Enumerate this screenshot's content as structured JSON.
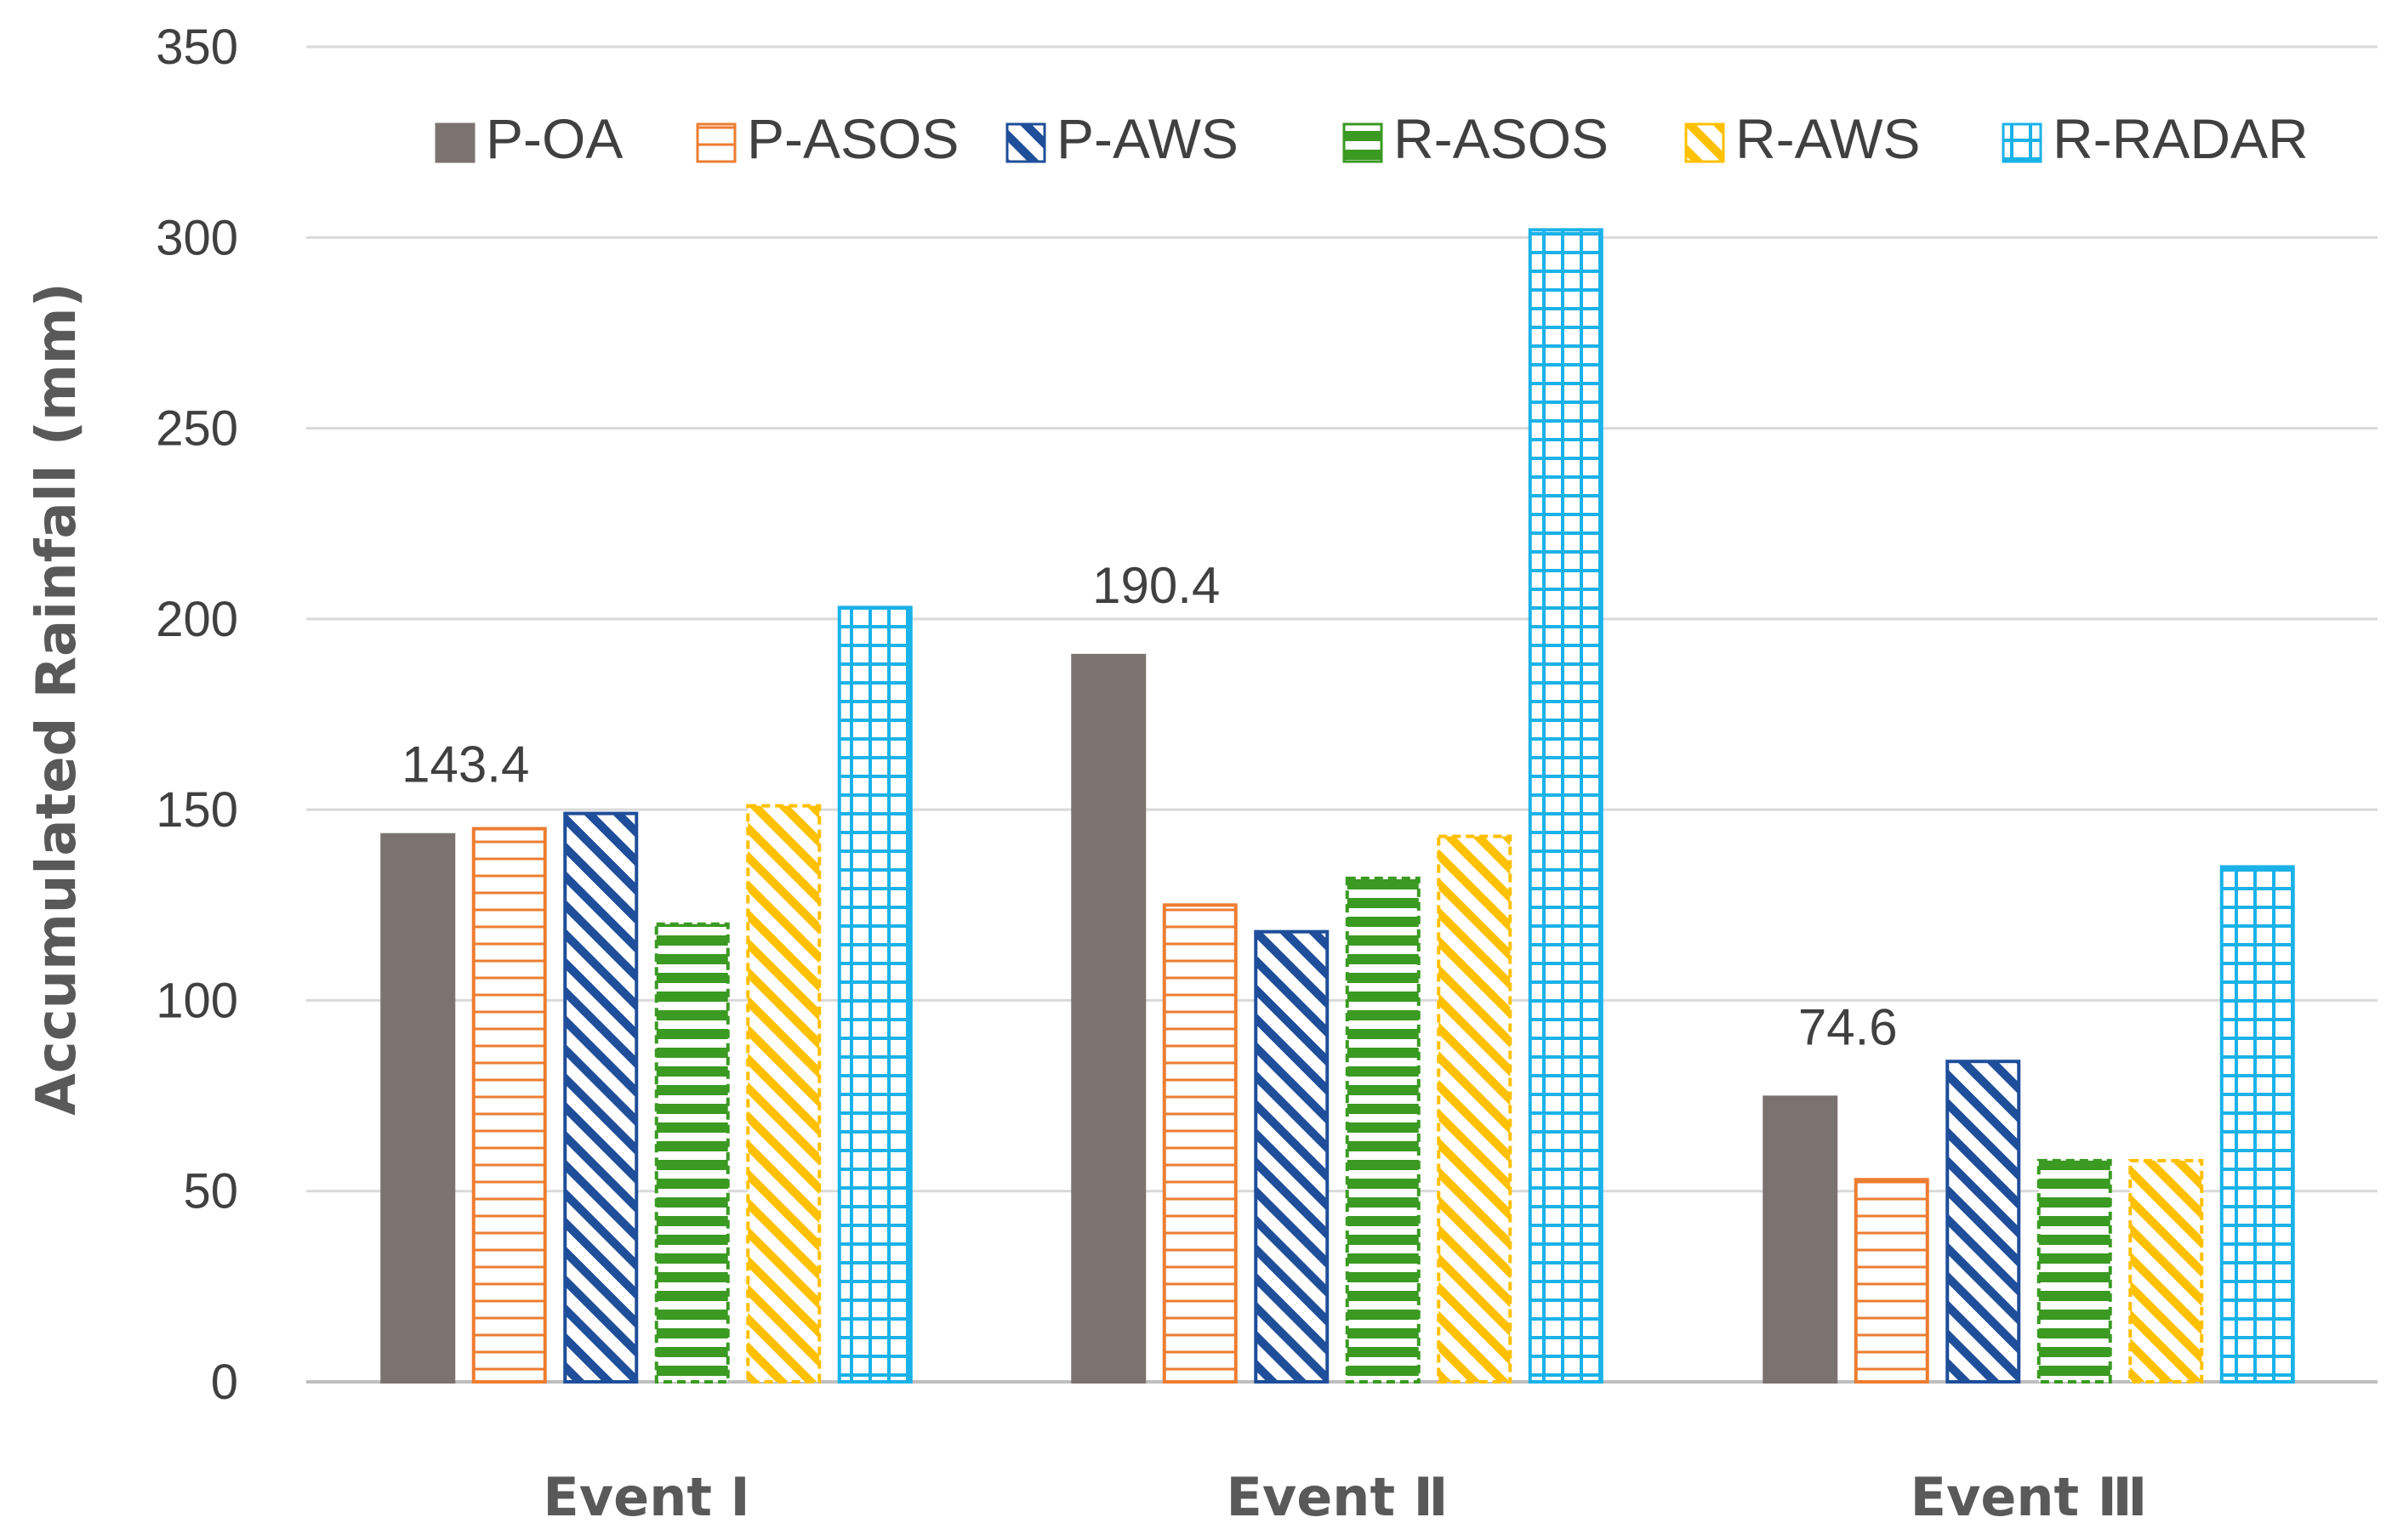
{
  "chart_data": {
    "type": "bar",
    "title": "",
    "xlabel": "",
    "ylabel": "Accumulated Rainfall (mm)",
    "ylim": [
      0,
      350
    ],
    "yticks": [
      "0",
      "50",
      "100",
      "150",
      "200",
      "250",
      "300",
      "350"
    ],
    "grid": true,
    "legend_position": "top",
    "categories": [
      "Event Ⅰ",
      "Event Ⅱ",
      "Event Ⅲ"
    ],
    "series": [
      {
        "name": "P-OA",
        "values": [
          143.4,
          190.4,
          74.6
        ],
        "color": "#7a7370",
        "pattern": "solid"
      },
      {
        "name": "P-ASOS",
        "values": [
          145,
          125,
          53
        ],
        "color": "#ed7d31",
        "pattern": "horizontal"
      },
      {
        "name": "P-AWS",
        "values": [
          149,
          118,
          84
        ],
        "color": "#1f4e9a",
        "pattern": "diagonal"
      },
      {
        "name": "R-ASOS",
        "values": [
          120,
          132,
          58
        ],
        "color": "#3a9a22",
        "pattern": "horizontal-dense"
      },
      {
        "name": "R-AWS",
        "values": [
          151,
          143,
          58
        ],
        "color": "#ffc000",
        "pattern": "diagonal-dashed"
      },
      {
        "name": "R-RADAR",
        "values": [
          203,
          302,
          135
        ],
        "color": "#1ab2e8",
        "pattern": "grid"
      }
    ],
    "data_labels": [
      {
        "series": "P-OA",
        "category": "Event Ⅰ",
        "text": "143.4"
      },
      {
        "series": "P-OA",
        "category": "Event Ⅱ",
        "text": "190.4"
      },
      {
        "series": "P-OA",
        "category": "Event Ⅲ",
        "text": "74.6"
      }
    ]
  }
}
